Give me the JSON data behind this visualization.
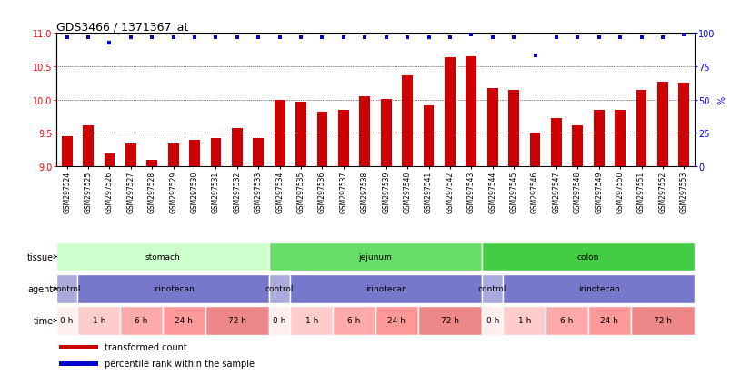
{
  "title": "GDS3466 / 1371367_at",
  "samples": [
    "GSM297524",
    "GSM297525",
    "GSM297526",
    "GSM297527",
    "GSM297528",
    "GSM297529",
    "GSM297530",
    "GSM297531",
    "GSM297532",
    "GSM297533",
    "GSM297534",
    "GSM297535",
    "GSM297536",
    "GSM297537",
    "GSM297538",
    "GSM297539",
    "GSM297540",
    "GSM297541",
    "GSM297542",
    "GSM297543",
    "GSM297544",
    "GSM297545",
    "GSM297546",
    "GSM297547",
    "GSM297548",
    "GSM297549",
    "GSM297550",
    "GSM297551",
    "GSM297552",
    "GSM297553"
  ],
  "bar_values": [
    9.45,
    9.61,
    9.2,
    9.35,
    9.1,
    9.35,
    9.4,
    9.43,
    9.58,
    9.42,
    10.0,
    9.97,
    9.82,
    9.85,
    10.05,
    10.01,
    10.37,
    9.91,
    10.63,
    10.65,
    10.18,
    10.15,
    9.5,
    9.73,
    9.62,
    9.85,
    9.85,
    10.15,
    10.27,
    10.25
  ],
  "percentile_values": [
    97,
    97,
    93,
    97,
    97,
    97,
    97,
    97,
    97,
    97,
    97,
    97,
    97,
    97,
    97,
    97,
    97,
    97,
    97,
    99,
    97,
    97,
    83,
    97,
    97,
    97,
    97,
    97,
    97,
    99
  ],
  "bar_color": "#cc0000",
  "percentile_color": "#0000cc",
  "y_min": 9.0,
  "y_max": 11.0,
  "y_ticks": [
    9.0,
    9.5,
    10.0,
    10.5,
    11.0
  ],
  "y2_ticks": [
    0,
    25,
    50,
    75,
    100
  ],
  "tissue_groups": [
    {
      "label": "stomach",
      "start": 0,
      "end": 9,
      "color": "#ccffcc"
    },
    {
      "label": "jejunum",
      "start": 10,
      "end": 19,
      "color": "#66dd66"
    },
    {
      "label": "colon",
      "start": 20,
      "end": 29,
      "color": "#44cc44"
    }
  ],
  "agent_groups": [
    {
      "label": "control",
      "start": 0,
      "end": 0,
      "color": "#aaaadd"
    },
    {
      "label": "irinotecan",
      "start": 1,
      "end": 9,
      "color": "#7777cc"
    },
    {
      "label": "control",
      "start": 10,
      "end": 10,
      "color": "#aaaadd"
    },
    {
      "label": "irinotecan",
      "start": 11,
      "end": 19,
      "color": "#7777cc"
    },
    {
      "label": "control",
      "start": 20,
      "end": 20,
      "color": "#aaaadd"
    },
    {
      "label": "irinotecan",
      "start": 21,
      "end": 29,
      "color": "#7777cc"
    }
  ],
  "time_groups": [
    {
      "label": "0 h",
      "start": 0,
      "end": 0,
      "color": "#ffeeee"
    },
    {
      "label": "1 h",
      "start": 1,
      "end": 2,
      "color": "#ffcccc"
    },
    {
      "label": "6 h",
      "start": 3,
      "end": 4,
      "color": "#ffaaaa"
    },
    {
      "label": "24 h",
      "start": 5,
      "end": 6,
      "color": "#ff9999"
    },
    {
      "label": "72 h",
      "start": 7,
      "end": 9,
      "color": "#ee8888"
    },
    {
      "label": "0 h",
      "start": 10,
      "end": 10,
      "color": "#ffeeee"
    },
    {
      "label": "1 h",
      "start": 11,
      "end": 12,
      "color": "#ffcccc"
    },
    {
      "label": "6 h",
      "start": 13,
      "end": 14,
      "color": "#ffaaaa"
    },
    {
      "label": "24 h",
      "start": 15,
      "end": 16,
      "color": "#ff9999"
    },
    {
      "label": "72 h",
      "start": 17,
      "end": 19,
      "color": "#ee8888"
    },
    {
      "label": "0 h",
      "start": 20,
      "end": 20,
      "color": "#ffeeee"
    },
    {
      "label": "1 h",
      "start": 21,
      "end": 22,
      "color": "#ffcccc"
    },
    {
      "label": "6 h",
      "start": 23,
      "end": 24,
      "color": "#ffaaaa"
    },
    {
      "label": "24 h",
      "start": 25,
      "end": 26,
      "color": "#ff9999"
    },
    {
      "label": "72 h",
      "start": 27,
      "end": 29,
      "color": "#ee8888"
    }
  ],
  "legend_items": [
    {
      "label": "transformed count",
      "color": "#cc0000"
    },
    {
      "label": "percentile rank within the sample",
      "color": "#0000cc"
    }
  ],
  "row_labels": [
    "tissue",
    "agent",
    "time"
  ],
  "grid_lines": [
    9.5,
    10.0,
    10.5
  ]
}
